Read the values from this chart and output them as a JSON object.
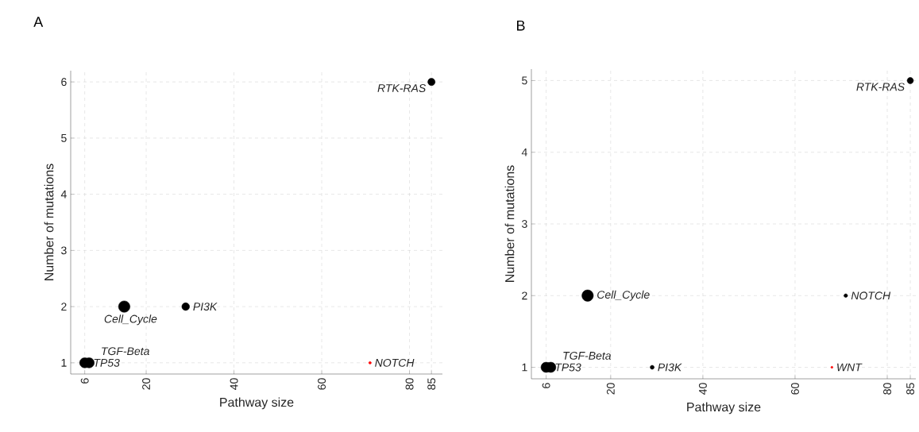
{
  "chart_data": [
    {
      "type": "bubble",
      "title": "A",
      "xlabel": "Pathway size",
      "ylabel": "Number of mutations",
      "x": [
        6,
        7,
        15,
        29,
        71,
        85
      ],
      "values": [
        1,
        1,
        2,
        2,
        1,
        6
      ],
      "sizes": [
        0.8,
        0.8,
        1,
        0.45,
        0.05,
        0.4
      ],
      "colors": [
        "#000000",
        "#000000",
        "#000000",
        "#000000",
        "#ff0000",
        "#000000"
      ],
      "xlim": [
        2.8,
        87.5
      ],
      "ylim": [
        0.8,
        6.2
      ],
      "xticks": [
        6,
        20,
        40,
        60,
        80,
        85
      ],
      "yticks": [
        1,
        2,
        3,
        4,
        5,
        6
      ],
      "grid": true,
      "annotations": [
        {
          "text": "TP53",
          "x": 6,
          "y": 1
        },
        {
          "text": "TGF-Beta",
          "x": 7,
          "y": 1
        },
        {
          "text": "Cell_Cycle",
          "x": 15,
          "y": 2
        },
        {
          "text": "PI3K",
          "x": 29,
          "y": 2
        },
        {
          "text": "NOTCH",
          "x": 71,
          "y": 1
        },
        {
          "text": "RTK-RAS",
          "x": 85,
          "y": 6
        }
      ]
    },
    {
      "type": "bubble",
      "title": "B",
      "xlabel": "Pathway size",
      "ylabel": "Number of mutations",
      "x": [
        6,
        7,
        15,
        29,
        68,
        71,
        85
      ],
      "values": [
        1,
        1,
        2,
        1,
        1,
        2,
        5
      ],
      "sizes": [
        0.8,
        0.8,
        1,
        0.12,
        0.03,
        0.1,
        0.3
      ],
      "colors": [
        "#000000",
        "#000000",
        "#000000",
        "#000000",
        "#ff0000",
        "#000000",
        "#000000"
      ],
      "xlim": [
        2.8,
        86.2
      ],
      "ylim": [
        0.84,
        5.16
      ],
      "xticks": [
        6,
        20,
        40,
        60,
        80,
        85
      ],
      "yticks": [
        1,
        2,
        3,
        4,
        5
      ],
      "grid": true,
      "annotations": [
        {
          "text": "TP53",
          "x": 6,
          "y": 1
        },
        {
          "text": "TGF-Beta",
          "x": 7,
          "y": 1
        },
        {
          "text": "Cell_Cycle",
          "x": 15,
          "y": 2
        },
        {
          "text": "PI3K",
          "x": 29,
          "y": 1
        },
        {
          "text": "WNT",
          "x": 68,
          "y": 1
        },
        {
          "text": "NOTCH",
          "x": 71,
          "y": 2
        },
        {
          "text": "RTK-RAS",
          "x": 85,
          "y": 5
        }
      ]
    }
  ]
}
